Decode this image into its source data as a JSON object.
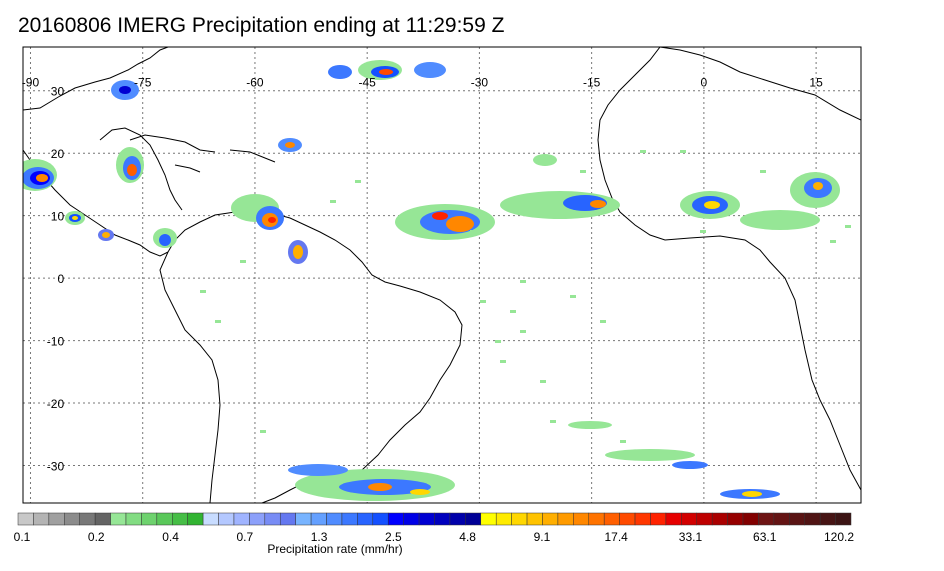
{
  "title": "20160806 IMERG Precipitation ending at 11:29:59 Z",
  "map": {
    "lon_labels": [
      "-90",
      "-75",
      "-60",
      "-45",
      "-30",
      "-15",
      "0",
      "15"
    ],
    "lat_labels": [
      "30",
      "20",
      "10",
      "0",
      "-10",
      "-20",
      "-30"
    ],
    "lon_values": [
      -90,
      -75,
      -60,
      -45,
      -30,
      -15,
      0,
      15
    ],
    "lat_values": [
      30,
      20,
      10,
      0,
      -10,
      -20,
      -30
    ],
    "lon_range": [
      -91,
      21
    ],
    "lat_range": [
      -36,
      37
    ],
    "grid": true
  },
  "colorbar": {
    "title": "Precipitation rate (mm/hr)",
    "tick_labels": [
      "0.1",
      "0.2",
      "0.4",
      "0.7",
      "1.3",
      "2.5",
      "4.8",
      "9.1",
      "17.4",
      "33.1",
      "63.1",
      "120.2"
    ],
    "colors": [
      "#c8c8c8",
      "#b4b4b4",
      "#a0a0a0",
      "#8c8c8c",
      "#787878",
      "#646464",
      "#96e696",
      "#82dc82",
      "#6ed26e",
      "#5ac85a",
      "#46be46",
      "#32b432",
      "#c8dcff",
      "#b4c8ff",
      "#a0b4ff",
      "#8ca0fa",
      "#788cf5",
      "#6478f0",
      "#78b4ff",
      "#64a0ff",
      "#508cff",
      "#3c78ff",
      "#2864ff",
      "#1450ff",
      "#0000ff",
      "#0000e6",
      "#0000d2",
      "#0000be",
      "#0000aa",
      "#000096",
      "#ffff00",
      "#ffeb00",
      "#ffd700",
      "#ffc300",
      "#ffaf00",
      "#ff9b00",
      "#ff8700",
      "#ff7300",
      "#ff5f00",
      "#ff4b00",
      "#ff3700",
      "#ff2300",
      "#e60000",
      "#d20000",
      "#be0000",
      "#aa0000",
      "#960000",
      "#820000",
      "#6e1414",
      "#641414",
      "#5a1414",
      "#501414",
      "#461414",
      "#3c1414"
    ]
  }
}
